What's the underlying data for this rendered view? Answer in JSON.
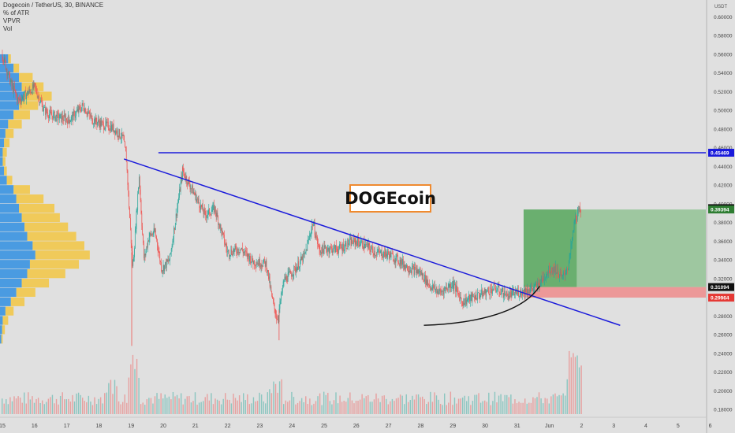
{
  "header": {
    "symbol_line": "Dogecoin / TetherUS, 30, BINANCE",
    "indicators": [
      "% of ATR",
      "VPVR",
      "Vol"
    ]
  },
  "annotation": {
    "text": "DOGEcoin"
  },
  "colors": {
    "background": "#e0e0e0",
    "bull": "#26a69a",
    "bear": "#ef5350",
    "trend": "#1a1adb",
    "vp_up": "#f2c84b",
    "vp_down": "#2f8ee0",
    "profit_zone": "#68b36b",
    "loss_zone": "#f08080",
    "box_border": "#ef8a2f"
  },
  "chart_data": {
    "type": "candlestick",
    "title": "Dogecoin / TetherUS, 30, BINANCE",
    "yunit": "USDT",
    "ylim": [
      0.175,
      0.608
    ],
    "y_ticks": [
      "0.60000",
      "0.58000",
      "0.56000",
      "0.54000",
      "0.52000",
      "0.50000",
      "0.48000",
      "0.46000",
      "0.44000",
      "0.42000",
      "0.40000",
      "0.38000",
      "0.36000",
      "0.34000",
      "0.32000",
      "0.30000",
      "0.28000",
      "0.26000",
      "0.24000",
      "0.22000",
      "0.20000",
      "0.18000"
    ],
    "x_ticks": [
      "15",
      "16",
      "17",
      "18",
      "19",
      "20",
      "21",
      "22",
      "23",
      "24",
      "25",
      "26",
      "27",
      "28",
      "29",
      "30",
      "31",
      "Jun",
      "2",
      "3",
      "4",
      "5",
      "6"
    ],
    "price_path": [
      [
        0,
        0.56
      ],
      [
        0.25,
        0.53
      ],
      [
        0.5,
        0.51
      ],
      [
        1.0,
        0.525
      ],
      [
        1.3,
        0.5
      ],
      [
        1.5,
        0.495
      ],
      [
        1.8,
        0.492
      ],
      [
        2.1,
        0.49
      ],
      [
        2.5,
        0.505
      ],
      [
        2.8,
        0.49
      ],
      [
        3.1,
        0.485
      ],
      [
        3.4,
        0.482
      ],
      [
        3.6,
        0.476
      ],
      [
        3.75,
        0.47
      ],
      [
        3.85,
        0.45
      ],
      [
        4.05,
        0.33
      ],
      [
        4.25,
        0.43
      ],
      [
        4.4,
        0.34
      ],
      [
        4.55,
        0.365
      ],
      [
        4.75,
        0.37
      ],
      [
        4.95,
        0.33
      ],
      [
        5.2,
        0.34
      ],
      [
        5.6,
        0.435
      ],
      [
        5.9,
        0.415
      ],
      [
        6.3,
        0.388
      ],
      [
        6.6,
        0.395
      ],
      [
        7.0,
        0.348
      ],
      [
        7.4,
        0.352
      ],
      [
        7.8,
        0.338
      ],
      [
        8.2,
        0.336
      ],
      [
        8.4,
        0.295
      ],
      [
        8.55,
        0.276
      ],
      [
        8.75,
        0.318
      ],
      [
        9.1,
        0.33
      ],
      [
        9.4,
        0.345
      ],
      [
        9.65,
        0.38
      ],
      [
        9.85,
        0.35
      ],
      [
        10.1,
        0.352
      ],
      [
        10.5,
        0.352
      ],
      [
        10.75,
        0.358
      ],
      [
        11.0,
        0.36
      ],
      [
        11.3,
        0.355
      ],
      [
        11.6,
        0.348
      ],
      [
        12.0,
        0.346
      ],
      [
        12.3,
        0.34
      ],
      [
        12.6,
        0.332
      ],
      [
        13.0,
        0.326
      ],
      [
        13.3,
        0.312
      ],
      [
        13.6,
        0.305
      ],
      [
        14.0,
        0.315
      ],
      [
        14.3,
        0.295
      ],
      [
        14.7,
        0.301
      ],
      [
        15.0,
        0.305
      ],
      [
        15.3,
        0.31
      ],
      [
        15.7,
        0.302
      ],
      [
        16.0,
        0.305
      ],
      [
        16.3,
        0.3075
      ],
      [
        16.55,
        0.31
      ],
      [
        16.75,
        0.318
      ],
      [
        17.0,
        0.33
      ],
      [
        17.2,
        0.33
      ],
      [
        17.4,
        0.32
      ],
      [
        17.6,
        0.335
      ],
      [
        17.8,
        0.385
      ],
      [
        18.0,
        0.395
      ]
    ],
    "spikes": [
      [
        4.02,
        0.248
      ],
      [
        8.6,
        0.254
      ],
      [
        5.6,
        0.44
      ]
    ],
    "volume_peaks": [
      [
        4.1,
        0.9
      ],
      [
        3.4,
        0.5
      ],
      [
        8.5,
        0.5
      ],
      [
        17.75,
        0.85
      ],
      [
        18.1,
        0.75
      ]
    ],
    "volume_profile": [
      [
        0.555,
        0.03,
        0.01
      ],
      [
        0.545,
        0.05,
        0.02
      ],
      [
        0.535,
        0.07,
        0.05
      ],
      [
        0.525,
        0.08,
        0.08
      ],
      [
        0.515,
        0.09,
        0.1
      ],
      [
        0.505,
        0.07,
        0.07
      ],
      [
        0.495,
        0.05,
        0.06
      ],
      [
        0.485,
        0.03,
        0.05
      ],
      [
        0.475,
        0.02,
        0.03
      ],
      [
        0.465,
        0.015,
        0.02
      ],
      [
        0.455,
        0.01,
        0.015
      ],
      [
        0.445,
        0.01,
        0.01
      ],
      [
        0.435,
        0.015,
        0.01
      ],
      [
        0.425,
        0.025,
        0.02
      ],
      [
        0.415,
        0.05,
        0.06
      ],
      [
        0.405,
        0.06,
        0.1
      ],
      [
        0.395,
        0.07,
        0.13
      ],
      [
        0.385,
        0.08,
        0.14
      ],
      [
        0.375,
        0.09,
        0.16
      ],
      [
        0.365,
        0.1,
        0.18
      ],
      [
        0.355,
        0.12,
        0.19
      ],
      [
        0.345,
        0.13,
        0.2
      ],
      [
        0.335,
        0.11,
        0.18
      ],
      [
        0.325,
        0.1,
        0.14
      ],
      [
        0.315,
        0.08,
        0.1
      ],
      [
        0.305,
        0.06,
        0.07
      ],
      [
        0.295,
        0.04,
        0.05
      ],
      [
        0.285,
        0.02,
        0.03
      ],
      [
        0.275,
        0.01,
        0.02
      ],
      [
        0.265,
        0.008,
        0.01
      ],
      [
        0.255,
        0.005,
        0.005
      ]
    ],
    "horizontal_line": {
      "y": 0.45469,
      "x_from": 4.85,
      "label": "0.45469"
    },
    "trendline": {
      "points": [
        [
          3.78,
          0.448
        ],
        [
          19.2,
          0.27
        ]
      ]
    },
    "curve": {
      "points": [
        [
          13.1,
          0.27
        ],
        [
          14.8,
          0.272
        ],
        [
          16.2,
          0.285
        ],
        [
          16.7,
          0.312
        ]
      ]
    },
    "long_position": {
      "x_from": 16.2,
      "x_to": 23.5,
      "entry": 0.31094,
      "target": 0.39394,
      "stop": 0.29964,
      "filled_to": 17.85
    },
    "price_labels": [
      {
        "text": "0.45469",
        "y": 0.45469,
        "color": "#1a1adb"
      },
      {
        "text": "0.39537",
        "y": 0.39537,
        "color": "#111111"
      },
      {
        "text": "0.39394",
        "y": 0.39394,
        "color": "#2e7d32"
      },
      {
        "text": "0.31094",
        "y": 0.31094,
        "color": "#111111"
      },
      {
        "text": "0.29964",
        "y": 0.29964,
        "color": "#e53935"
      }
    ]
  }
}
